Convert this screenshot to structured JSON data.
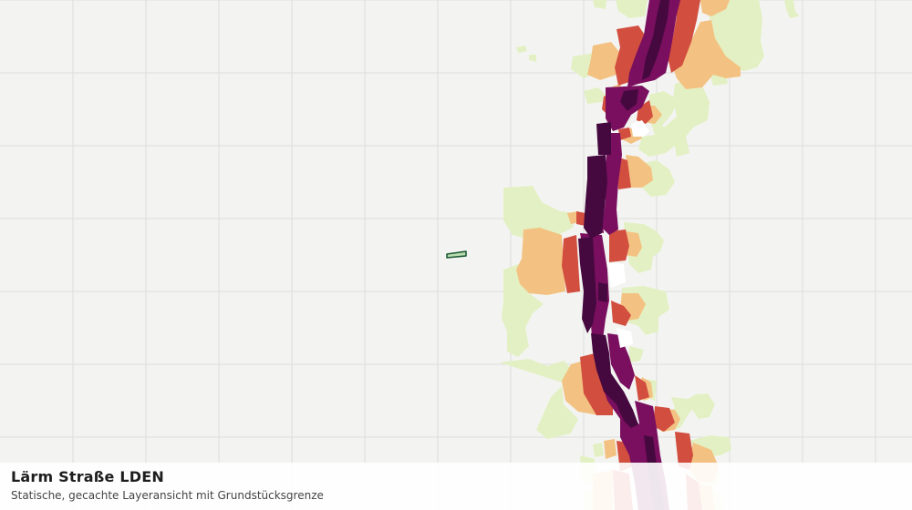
{
  "layer": {
    "title": "Lärm Straße LDEN",
    "subtitle": "Statische, gecachte Layeransicht mit Grundstücksgrenze"
  },
  "colors": {
    "background": "#f3f4f2",
    "grid": "#dcdedb",
    "noise_class_1": "#e3f0c3",
    "noise_class_2": "#f3c282",
    "noise_class_3": "#d24e3f",
    "noise_class_4": "#7a0f5f",
    "noise_class_5": "#45093f",
    "parcel_fill": "#b8dcae",
    "parcel_stroke": "#1e5a36"
  },
  "icons": {
    "parcel": "parcel-boundary-icon"
  }
}
